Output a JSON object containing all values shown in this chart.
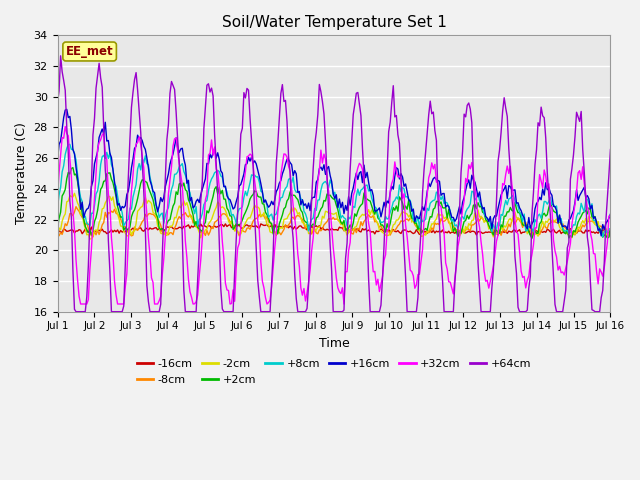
{
  "title": "Soil/Water Temperature Set 1",
  "xlabel": "Time",
  "ylabel": "Temperature (C)",
  "ylim": [
    16,
    34
  ],
  "yticks": [
    16,
    18,
    20,
    22,
    24,
    26,
    28,
    30,
    32,
    34
  ],
  "xlim": [
    0,
    15
  ],
  "xtick_labels": [
    "Jul 1",
    "Jul 2",
    "Jul 3",
    "Jul 4",
    "Jul 5",
    "Jul 6",
    "Jul 7",
    "Jul 8",
    "Jul 9",
    "Jul 10",
    "Jul 11",
    "Jul 12",
    "Jul 13",
    "Jul 14",
    "Jul 15",
    "Jul 16"
  ],
  "annotation_text": "EE_met",
  "annotation_color": "#8B0000",
  "annotation_bg": "#FFFF99",
  "annotation_border": "#999900",
  "facecolor": "#E8E8E8",
  "fig_facecolor": "#F2F2F2",
  "grid_color": "#FFFFFF",
  "series": [
    {
      "label": "-16cm",
      "color": "#CC0000"
    },
    {
      "label": "-8cm",
      "color": "#FF8800"
    },
    {
      "label": "-2cm",
      "color": "#DDDD00"
    },
    {
      "label": "+2cm",
      "color": "#00BB00"
    },
    {
      "label": "+8cm",
      "color": "#00CCCC"
    },
    {
      "label": "+16cm",
      "color": "#0000CC"
    },
    {
      "label": "+32cm",
      "color": "#FF00FF"
    },
    {
      "label": "+64cm",
      "color": "#9900CC"
    }
  ],
  "linewidth": 1.0,
  "figsize": [
    6.4,
    4.8
  ],
  "dpi": 100
}
